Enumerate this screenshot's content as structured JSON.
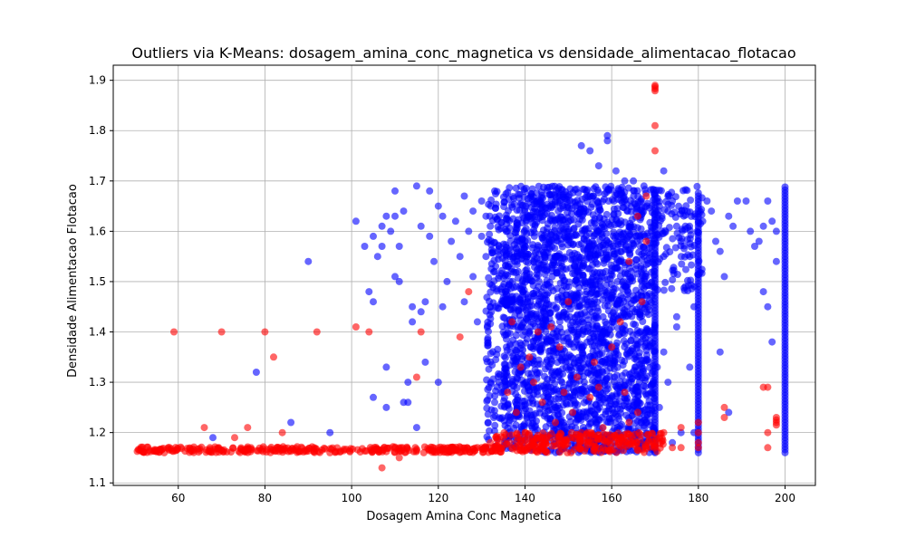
{
  "chart_data": {
    "type": "scatter",
    "title": "Outliers via K-Means: dosagem_amina_conc_magnetica vs densidade_alimentacao_flotacao",
    "xlabel": "Dosagem Amina Conc Magnetica",
    "ylabel": "Densidade Alimentacao Flotacao",
    "xlim": [
      45,
      207
    ],
    "ylim": [
      1.095,
      1.93
    ],
    "xticks": [
      "60",
      "80",
      "100",
      "120",
      "140",
      "160",
      "180",
      "200"
    ],
    "yticks": [
      "1.1",
      "1.2",
      "1.3",
      "1.4",
      "1.5",
      "1.6",
      "1.7",
      "1.8",
      "1.9"
    ],
    "grid": true,
    "legend": false,
    "point_alpha": 0.6,
    "series": [
      {
        "color": "#0000ff",
        "points": [
          [
            90,
            1.54
          ],
          [
            78,
            1.32
          ],
          [
            86,
            1.22
          ],
          [
            68,
            1.19
          ],
          [
            95,
            1.2
          ],
          [
            101,
            1.62
          ],
          [
            103,
            1.57
          ],
          [
            104,
            1.48
          ],
          [
            105,
            1.46
          ],
          [
            105,
            1.27
          ],
          [
            105,
            1.59
          ],
          [
            106,
            1.55
          ],
          [
            107,
            1.61
          ],
          [
            107,
            1.57
          ],
          [
            108,
            1.33
          ],
          [
            108,
            1.63
          ],
          [
            108,
            1.25
          ],
          [
            109,
            1.6
          ],
          [
            110,
            1.68
          ],
          [
            110,
            1.51
          ],
          [
            110,
            1.63
          ],
          [
            111,
            1.5
          ],
          [
            111,
            1.57
          ],
          [
            112,
            1.26
          ],
          [
            112,
            1.64
          ],
          [
            113,
            1.26
          ],
          [
            113,
            1.3
          ],
          [
            114,
            1.42
          ],
          [
            114,
            1.45
          ],
          [
            115,
            1.69
          ],
          [
            115,
            1.21
          ],
          [
            116,
            1.44
          ],
          [
            116,
            1.61
          ],
          [
            117,
            1.34
          ],
          [
            117,
            1.46
          ],
          [
            118,
            1.59
          ],
          [
            118,
            1.68
          ],
          [
            119,
            1.54
          ],
          [
            120,
            1.65
          ],
          [
            120,
            1.3
          ],
          [
            121,
            1.45
          ],
          [
            121,
            1.63
          ],
          [
            122,
            1.5
          ],
          [
            123,
            1.58
          ],
          [
            124,
            1.62
          ],
          [
            125,
            1.55
          ],
          [
            126,
            1.67
          ],
          [
            126,
            1.46
          ],
          [
            127,
            1.6
          ],
          [
            128,
            1.64
          ],
          [
            128,
            1.51
          ],
          [
            129,
            1.42
          ],
          [
            130,
            1.59
          ],
          [
            130,
            1.66
          ],
          [
            131,
            1.63
          ],
          [
            131,
            1.55
          ],
          [
            132,
            1.45
          ],
          [
            132,
            1.61
          ],
          [
            133,
            1.68
          ],
          [
            133,
            1.52
          ],
          [
            133,
            1.26
          ],
          [
            134,
            1.3
          ],
          [
            134,
            1.57
          ],
          [
            155,
            1.76
          ],
          [
            157,
            1.73
          ],
          [
            159,
            1.79
          ],
          [
            159,
            1.78
          ],
          [
            153,
            1.77
          ],
          [
            161,
            1.72
          ],
          [
            163,
            1.7
          ],
          [
            165,
            1.7
          ],
          [
            172,
            1.72
          ],
          [
            173,
            1.64
          ],
          [
            174,
            1.66
          ],
          [
            175,
            1.61
          ],
          [
            175,
            1.41
          ],
          [
            175,
            1.43
          ],
          [
            176,
            1.58
          ],
          [
            177,
            1.49
          ],
          [
            177,
            1.61
          ],
          [
            178,
            1.33
          ],
          [
            178,
            1.55
          ],
          [
            179,
            1.45
          ],
          [
            179,
            1.2
          ],
          [
            181,
            1.62
          ],
          [
            182,
            1.66
          ],
          [
            183,
            1.64
          ],
          [
            184,
            1.58
          ],
          [
            185,
            1.56
          ],
          [
            185,
            1.36
          ],
          [
            186,
            1.51
          ],
          [
            187,
            1.63
          ],
          [
            187,
            1.24
          ],
          [
            188,
            1.61
          ],
          [
            189,
            1.66
          ],
          [
            191,
            1.66
          ],
          [
            192,
            1.6
          ],
          [
            193,
            1.57
          ],
          [
            194,
            1.58
          ],
          [
            195,
            1.61
          ],
          [
            195,
            1.48
          ],
          [
            196,
            1.66
          ],
          [
            196,
            1.45
          ],
          [
            197,
            1.62
          ],
          [
            197,
            1.38
          ],
          [
            198,
            1.54
          ],
          [
            198,
            1.6
          ],
          [
            171,
            1.25
          ],
          [
            172,
            1.36
          ],
          [
            173,
            1.3
          ],
          [
            174,
            1.18
          ],
          [
            176,
            1.2
          ],
          [
            170.5,
            1.33
          ],
          [
            172,
            1.55
          ],
          [
            171,
            1.65
          ]
        ],
        "dense_regions": [
          {
            "x": [
              135,
              170
            ],
            "y": [
              1.16,
              1.69
            ],
            "count": 2400
          },
          {
            "x": [
              131,
              136
            ],
            "y": [
              1.16,
              1.68
            ],
            "count": 160
          },
          {
            "x": [
              170,
              181
            ],
            "y": [
              1.48,
              1.69
            ],
            "count": 120
          }
        ],
        "vertical_bands": [
          {
            "x": 170,
            "y": [
              1.16,
              1.68
            ]
          },
          {
            "x": 180,
            "y": [
              1.16,
              1.68
            ]
          },
          {
            "x": 200,
            "y": [
              1.16,
              1.69
            ]
          }
        ]
      },
      {
        "color": "#ff0000",
        "points": [
          [
            59,
            1.4
          ],
          [
            70,
            1.4
          ],
          [
            80,
            1.4
          ],
          [
            92,
            1.4
          ],
          [
            101,
            1.41
          ],
          [
            104,
            1.4
          ],
          [
            116,
            1.4
          ],
          [
            82,
            1.35
          ],
          [
            66,
            1.21
          ],
          [
            76,
            1.21
          ],
          [
            84,
            1.2
          ],
          [
            73,
            1.19
          ],
          [
            107,
            1.13
          ],
          [
            111,
            1.15
          ],
          [
            115,
            1.31
          ],
          [
            125,
            1.39
          ],
          [
            127,
            1.48
          ],
          [
            123,
            1.17
          ],
          [
            129,
            1.17
          ],
          [
            132,
            1.18
          ],
          [
            170,
            1.89
          ],
          [
            170,
            1.887
          ],
          [
            170,
            1.883
          ],
          [
            170,
            1.879
          ],
          [
            170,
            1.81
          ],
          [
            170,
            1.76
          ],
          [
            168,
            1.67
          ],
          [
            166,
            1.63
          ],
          [
            168,
            1.58
          ],
          [
            164,
            1.54
          ],
          [
            167,
            1.46
          ],
          [
            162,
            1.42
          ],
          [
            160,
            1.37
          ],
          [
            156,
            1.34
          ],
          [
            157,
            1.29
          ],
          [
            163,
            1.28
          ],
          [
            166,
            1.24
          ],
          [
            146,
            1.41
          ],
          [
            148,
            1.37
          ],
          [
            141,
            1.35
          ],
          [
            143,
            1.4
          ],
          [
            150,
            1.46
          ],
          [
            137,
            1.42
          ],
          [
            139,
            1.33
          ],
          [
            142,
            1.3
          ],
          [
            144,
            1.26
          ],
          [
            147,
            1.22
          ],
          [
            149,
            1.28
          ],
          [
            151,
            1.24
          ],
          [
            153,
            1.2
          ],
          [
            155,
            1.27
          ],
          [
            158,
            1.21
          ],
          [
            161,
            1.19
          ],
          [
            164,
            1.22
          ],
          [
            138,
            1.24
          ],
          [
            136,
            1.28
          ],
          [
            140,
            1.2
          ],
          [
            145,
            1.19
          ],
          [
            152,
            1.31
          ],
          [
            159,
            1.18
          ],
          [
            172,
            1.2
          ],
          [
            174,
            1.17
          ],
          [
            176,
            1.17
          ],
          [
            176,
            1.21
          ],
          [
            180,
            1.22
          ],
          [
            180,
            1.2
          ],
          [
            180,
            1.18
          ],
          [
            180,
            1.17
          ],
          [
            186,
            1.25
          ],
          [
            186,
            1.23
          ],
          [
            195,
            1.29
          ],
          [
            196,
            1.29
          ],
          [
            196,
            1.2
          ],
          [
            196,
            1.17
          ],
          [
            198,
            1.23
          ],
          [
            198,
            1.22
          ],
          [
            198,
            1.225
          ],
          [
            198,
            1.215
          ]
        ],
        "dense_regions": [
          {
            "x": [
              50,
              135
            ],
            "y": [
              1.16,
              1.172
            ],
            "count": 340
          },
          {
            "x": [
              133,
              172
            ],
            "y": [
              1.16,
              1.2
            ],
            "count": 260
          }
        ]
      }
    ]
  }
}
